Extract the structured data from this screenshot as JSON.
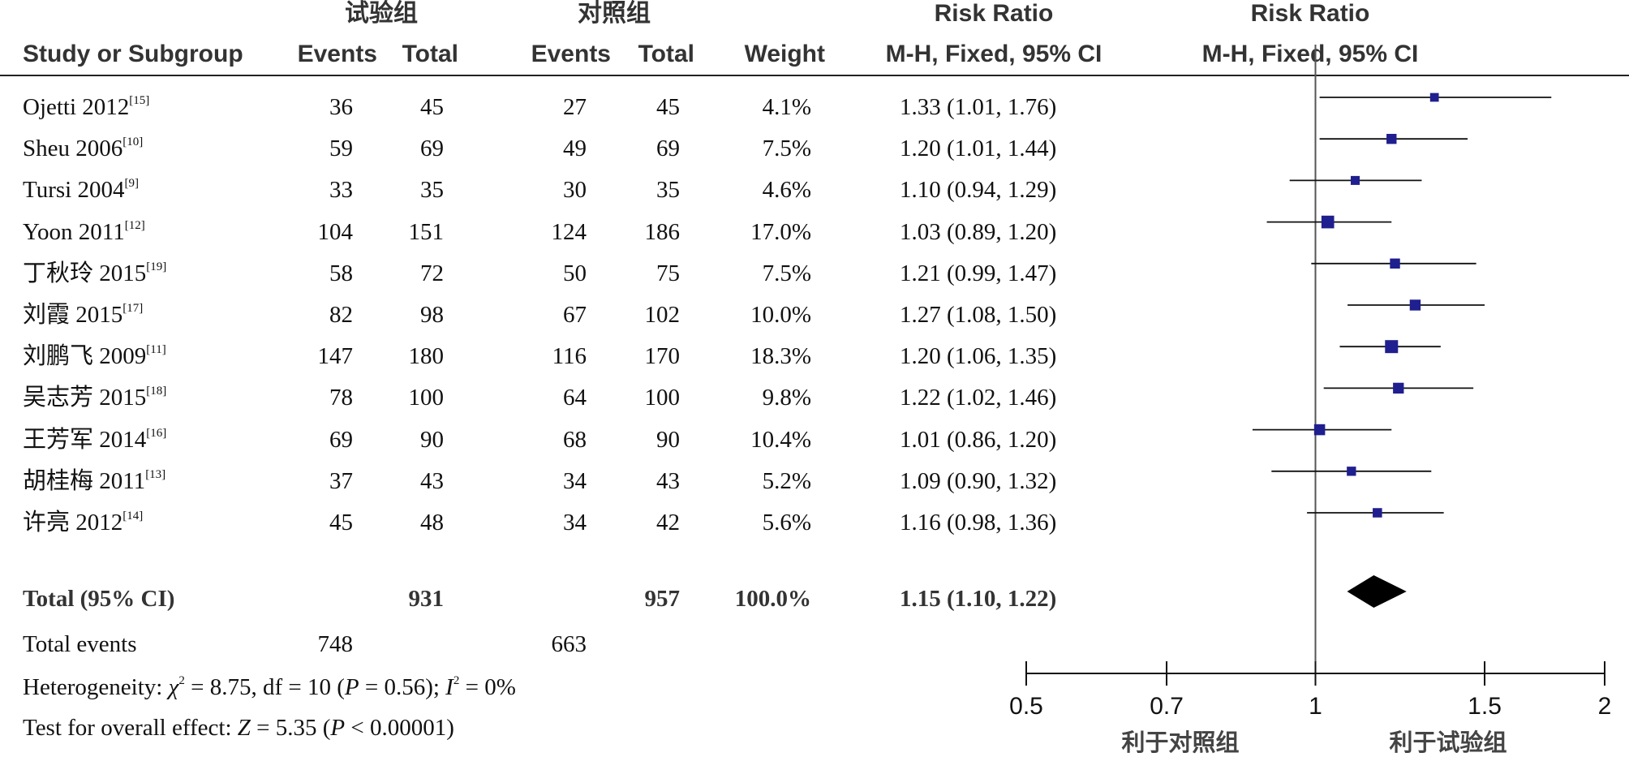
{
  "chart_data": {
    "type": "forest",
    "header": {
      "group1": "试验组",
      "group2": "对照组",
      "rr_title": "Risk Ratio",
      "plot_title": "Risk Ratio",
      "study_col": "Study or Subgroup",
      "events": "Events",
      "total": "Total",
      "weight": "Weight",
      "rr_method": "M-H, Fixed, 95% CI",
      "plot_method": "M-H, Fixed, 95% CI"
    },
    "studies": [
      {
        "name": "Ojetti 2012",
        "ref": "[15]",
        "e1": "36",
        "t1": "45",
        "e2": "27",
        "t2": "45",
        "weight": "4.1%",
        "ci_text": "1.33 (1.01, 1.76)",
        "rr": 1.33,
        "lo": 1.01,
        "hi": 1.76
      },
      {
        "name": "Sheu 2006",
        "ref": "[10]",
        "e1": "59",
        "t1": "69",
        "e2": "49",
        "t2": "69",
        "weight": "7.5%",
        "ci_text": "1.20 (1.01, 1.44)",
        "rr": 1.2,
        "lo": 1.01,
        "hi": 1.44
      },
      {
        "name": "Tursi 2004",
        "ref": "[9]",
        "e1": "33",
        "t1": "35",
        "e2": "30",
        "t2": "35",
        "weight": "4.6%",
        "ci_text": "1.10 (0.94, 1.29)",
        "rr": 1.1,
        "lo": 0.94,
        "hi": 1.29
      },
      {
        "name": "Yoon 2011",
        "ref": "[12]",
        "e1": "104",
        "t1": "151",
        "e2": "124",
        "t2": "186",
        "weight": "17.0%",
        "ci_text": "1.03 (0.89, 1.20)",
        "rr": 1.03,
        "lo": 0.89,
        "hi": 1.2
      },
      {
        "name": "丁秋玲 2015",
        "ref": "[19]",
        "e1": "58",
        "t1": "72",
        "e2": "50",
        "t2": "75",
        "weight": "7.5%",
        "ci_text": "1.21 (0.99, 1.47)",
        "rr": 1.21,
        "lo": 0.99,
        "hi": 1.47
      },
      {
        "name": "刘霞 2015",
        "ref": "[17]",
        "e1": "82",
        "t1": "98",
        "e2": "67",
        "t2": "102",
        "weight": "10.0%",
        "ci_text": "1.27 (1.08, 1.50)",
        "rr": 1.27,
        "lo": 1.08,
        "hi": 1.5
      },
      {
        "name": "刘鹏飞 2009",
        "ref": "[11]",
        "e1": "147",
        "t1": "180",
        "e2": "116",
        "t2": "170",
        "weight": "18.3%",
        "ci_text": "1.20 (1.06, 1.35)",
        "rr": 1.2,
        "lo": 1.06,
        "hi": 1.35
      },
      {
        "name": "吴志芳 2015",
        "ref": "[18]",
        "e1": "78",
        "t1": "100",
        "e2": "64",
        "t2": "100",
        "weight": "9.8%",
        "ci_text": "1.22 (1.02, 1.46)",
        "rr": 1.22,
        "lo": 1.02,
        "hi": 1.46
      },
      {
        "name": "王芳军 2014",
        "ref": "[16]",
        "e1": "69",
        "t1": "90",
        "e2": "68",
        "t2": "90",
        "weight": "10.4%",
        "ci_text": "1.01 (0.86, 1.20)",
        "rr": 1.01,
        "lo": 0.86,
        "hi": 1.2
      },
      {
        "name": "胡桂梅 2011",
        "ref": "[13]",
        "e1": "37",
        "t1": "43",
        "e2": "34",
        "t2": "43",
        "weight": "5.2%",
        "ci_text": "1.09 (0.90, 1.32)",
        "rr": 1.09,
        "lo": 0.9,
        "hi": 1.32
      },
      {
        "name": "许亮 2012",
        "ref": "[14]",
        "e1": "45",
        "t1": "48",
        "e2": "34",
        "t2": "42",
        "weight": "5.6%",
        "ci_text": "1.16 (0.98, 1.36)",
        "rr": 1.16,
        "lo": 0.98,
        "hi": 1.36
      }
    ],
    "total": {
      "label": "Total (95% CI)",
      "t1": "931",
      "t2": "957",
      "weight": "100.0%",
      "ci_text": "1.15 (1.10, 1.22)",
      "rr": 1.15,
      "lo": 1.1,
      "hi": 1.22
    },
    "total_events": {
      "label": "Total events",
      "e1": "748",
      "e2": "663"
    },
    "heterogeneity": {
      "prefix": "Heterogeneity: ",
      "chi": "χ",
      "chi_value": " = 8.75, df = 10 (",
      "p": "P",
      "p_value": " = 0.56); ",
      "i": "I",
      "i_value": " = 0%"
    },
    "overall_effect": {
      "prefix": "Test for overall effect: ",
      "z": "Z",
      "z_value": " = 5.35 (",
      "p": "P",
      "p_value": " < 0.00001)"
    },
    "axis": {
      "scale": "log",
      "ticks": [
        0.5,
        0.7,
        1,
        1.5,
        2
      ],
      "tick_labels": [
        "0.5",
        "0.7",
        "1",
        "1.5",
        "2"
      ],
      "min": 0.5,
      "max": 2,
      "null_line": 1
    },
    "favours_left": "利于对照组",
    "favours_right": "利于试验组",
    "colors": {
      "square": "#1f1f8f",
      "diamond": "#000000",
      "line": "#111111"
    }
  }
}
